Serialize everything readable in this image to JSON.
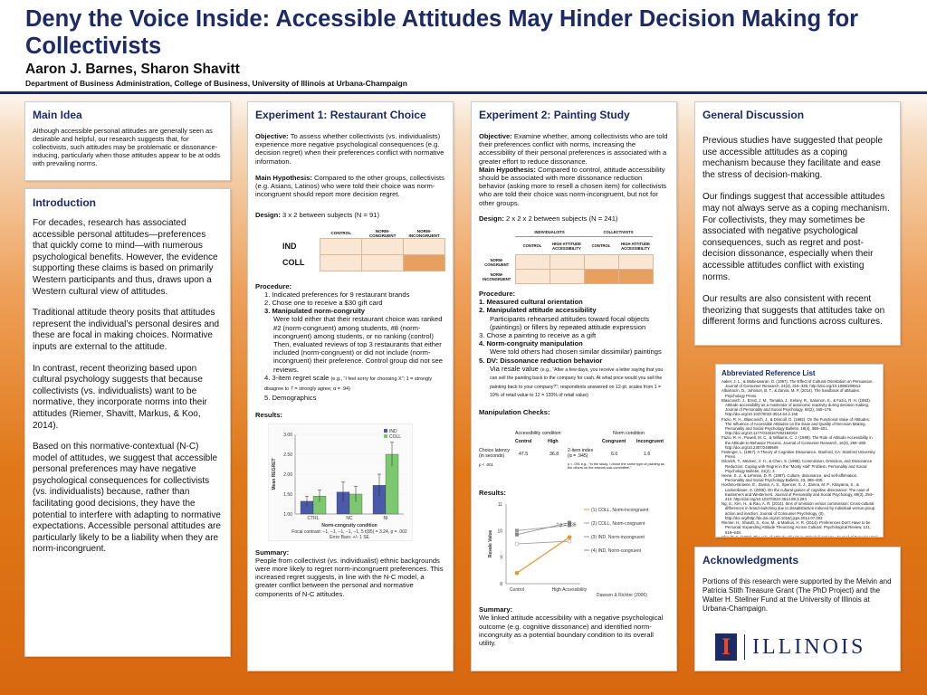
{
  "header": {
    "title": "Deny the Voice Inside: Accessible Attitudes May Hinder Decision Making for Collectivists",
    "authors": "Aaron J. Barnes, Sharon Shavitt",
    "department": "Department of Business Administration, College of Business, University of Illinois at Urbana-Champaign"
  },
  "main_idea": {
    "heading": "Main Idea",
    "text": "Although accessible personal attitudes are generally seen as desirable and helpful, our research suggests that, for collectivists, such attitudes may be problematic or dissonance-inducing, particularly when those attitudes appear to be at odds with prevailing norms."
  },
  "intro": {
    "heading": "Introduction",
    "p1": "For decades, research has associated accessible personal attitudes—preferences that quickly come to mind—with numerous psychological benefits. However, the evidence supporting these claims is based on primarily Western participants and thus, draws upon a Western cultural view of attitudes.",
    "p2": "Traditional attitude theory posits that attitudes represent the individual’s personal desires and these are focal in making choices. Normative inputs are external to the attitude.",
    "p3": "In contrast, recent theorizing based upon cultural psychology suggests that because collectivists (vs. individualists) want to be normative, they incorporate norms into their attitudes (Riemer, Shavitt, Markus, & Koo, 2014).",
    "p4": "Based on this normative-contextual (N-C) model of attitudes, we suggest that accessible personal preferences may have negative psychological consequences for collectivists (vs. individualists) because, rather than facilitating good decisions, they have the potential to interfere with adapting to normative expectations. Accessible personal attitudes are particularly likely to be a liability when they are norm-incongruent."
  },
  "exp1": {
    "heading": "Experiment 1: Restaurant Choice",
    "objective_label": "Objective:",
    "objective": "To assess whether collectivists (vs. individualists) experience more negative psychological consequences (e.g. decision regret) when their preferences conflict with normative information.",
    "hypothesis_label": "Main Hypothesis:",
    "hypothesis": "Compared to the other groups, collectivists (e.g. Asians, Latinos) who were told their choice was norm-incongruent should report more decision regret.",
    "design_label": "Design:",
    "design": "3 x 2 between subjects (N = 91)",
    "table_cols": [
      "CONTROL",
      "NORM-\nCONGRUENT",
      "NORM-\nINCONGRUENT"
    ],
    "table_rows": [
      "IND",
      "COLL"
    ],
    "procedure_label": "Procedure:",
    "procedure": [
      "1. Indicated preferences for 9 restaurant brands",
      "2. Chose one to receive a $30 gift card",
      "3. Manipulated norm-congruity"
    ],
    "procedure_detail": "Were told either that their restaurant choice was ranked #2 (norm-congruent) among students, #8 (norm-incongruent) among students, or no ranking (control)",
    "procedure_detail2": "Then, evaluated reviews of top 3 restaurants that either included (norm-congruent) or did not include (norm-incongruent) their preference. Control group did not see reviews.",
    "procedure_4": "4. 3-item regret scale",
    "procedure_4_note": "(e.g., “I feel sorry for choosing X”; 1 = strongly disagree to 7 = strongly agree; α = .94)",
    "procedure_5": "5. Demographics",
    "results_label": "Results:",
    "summary_label": "Summary:",
    "summary": "People from collectivist (vs. individualist) ethnic backgrounds were more likely to regret norm-incongruent preferences. This increased regret suggests, in line with the N-C model, a greater conflict between the personal and normative components of N-C attitudes."
  },
  "exp2": {
    "heading": "Experiment 2: Painting Study",
    "objective_label": "Objective:",
    "objective": "Examine whether, among collectivists who are told their preferences conflict with norms, increasing the accessibility of their personal preferences is associated with a greater effort to reduce dissonance.",
    "hypothesis_label": "Main Hypothesis:",
    "hypothesis": "Compared to control, attitude accessibility should be associated with more dissonance reduction behavior (asking more to resell a chosen item) for collectivists who are told their choice was norm-incongruent, but not for other groups.",
    "design_label": "Design:",
    "design": "2 x 2 x 2 between subjects (N = 241)",
    "table_groups": [
      "INDIVIDUALISTS",
      "COLLECTIVISTS"
    ],
    "table_cols": [
      "CONTROL",
      "HIGH ATTITUDE\nACCESSIBILITY",
      "CONTROL",
      "HIGH ATTITUDE\nACCESSIBILITY"
    ],
    "table_rows": [
      "NORM-\nCONGRUENT",
      "NORM-\nINCONGRUENT"
    ],
    "procedure_label": "Procedure:",
    "proc1": "1.  Measured cultural orientation",
    "proc2": "2.  Manipulated attitude accessibility",
    "proc2_detail": "Participants rehearsed attitudes toward focal objects (paintings) or fillers by repeated attitude expression",
    "proc3": "3.  Chose a painting to receive as a gift",
    "proc4": "4.  Norm-congruity manipulation",
    "proc4_detail": "Were told others had chosen similar dissimilar) paintings",
    "proc5": "5.  DV: Dissonance reduction behavior",
    "proc5_detail": "Via resale value",
    "proc5_note": "(e.g., “After a few days, you receive a letter saying that you can sell the painting back to the company for cash. At what price would you sell the painting back to your company?”; respondents answered on 12-pt. scales from 1 = 10% of retail value to 12 = 120% of retail value)",
    "manip_label": "Manipulation Checks:",
    "results_label": "Results:",
    "summary_label": "Summary:",
    "summary": "We linked attitude accessibility with a negative psychological outcome (e.g. cognitive dissonance) and identified norm-incongruity as a potential boundary condition to its overall utility.",
    "source": "Dawson & Richter (2006)"
  },
  "manip": {
    "acc_title": "Accessibility condition",
    "acc_cols": [
      "Control",
      "High"
    ],
    "row_label": "Choice latency\n(in seconds)",
    "row_p": "p < .001",
    "acc_vals": [
      "47.5",
      "36.8"
    ],
    "two_item": "2-item index\n(α = .945)",
    "norm_title": "Norm condition",
    "norm_cols": [
      "Congruent",
      "Incongruent"
    ],
    "norm_vals": [
      "6.0",
      "1.6"
    ],
    "norm_note": "p < .001 e.g., “In the study, I chose the same type of painting as the others on the artwork sub-committee.”"
  },
  "chart_data": [
    {
      "type": "bar",
      "title": "",
      "categories": [
        "CTRL",
        "NC",
        "NI"
      ],
      "series": [
        {
          "name": "IND",
          "color": "#4a5aa8",
          "values": [
            1.32,
            1.55,
            1.72
          ]
        },
        {
          "name": "COLL",
          "color": "#7cc870",
          "values": [
            1.45,
            1.5,
            2.5
          ]
        }
      ],
      "errors": {
        "IND": [
          0.12,
          0.25,
          0.28
        ],
        "COLL": [
          0.15,
          0.2,
          0.3
        ]
      },
      "xlabel": "Norm-congruity condition",
      "ylabel": "Mean REGRET",
      "ylim": [
        1.0,
        3.0
      ],
      "yticks": [
        "3.00",
        "2.50",
        "2.00",
        "1.50",
        "1.00"
      ],
      "legend": [
        "IND",
        "COLL"
      ],
      "footnote": "Focal contrast: −1, −1, −1, −1, −1, 5  t(85) = 3.24, p = .002",
      "errorbars": "Error Bars: +/- 1 SE"
    },
    {
      "type": "line",
      "categories": [
        "Control",
        "High Accessibility"
      ],
      "series": [
        {
          "name": "(1) COLL, Norm-incongruent",
          "color": "#e8962c",
          "marker": "circle",
          "values": [
            8.4,
            9.75
          ]
        },
        {
          "name": "(2) COLL, Norm-congruent",
          "color": "#999",
          "marker": "square",
          "values": [
            10.0,
            10.2
          ]
        },
        {
          "name": "(3) IND, Norm-incongruent",
          "color": "#999",
          "marker": "circle-open",
          "values": [
            9.5,
            9.6
          ]
        },
        {
          "name": "(4) IND, Norm-congruent",
          "color": "#888",
          "marker": "square",
          "values": [
            9.85,
            10.3
          ]
        }
      ],
      "ylabel": "Resale Value",
      "ylim": [
        8,
        11
      ],
      "yticks": [
        "11",
        "10",
        "9",
        "8"
      ],
      "annotation": "* p = .036"
    }
  ],
  "discussion": {
    "heading": "General Discussion",
    "p1": "Previous studies have suggested that people use accessible attitudes as a coping mechanism because they facilitate and ease the stress of decision-making.",
    "p2": "Our findings suggest that accessible attitudes may not always serve as a coping mechanism. For collectivists, they may sometimes be associated with negative psychological consequences, such as regret and post-decision dissonance, especially when their accessible attitudes conflict with existing norms.",
    "p3": "Our results are also consistent with recent theorizing that suggests that attitudes take on different forms and functions across cultures."
  },
  "refs": {
    "heading": "Abbreviated Reference List",
    "items": [
      "Aaker, J. L., & Maheswaran, D. (1997). The Effect of Cultural Orientation on Persuasion. Journal of Consumer Research, 24(3), 315–328. http://doi.org/10.1086/209513",
      "Albarracín, D., Johnson, B. T., & Zanna, M. P. (2014). The handbook of attitudes. Psychology Press.",
      "Blascovich, J., Ernst, J. M., Tomaka, J., Kelsey, R., Salomon, K., & Fazio, R. H. (1993). Attitude accessibility as a moderator of autonomic reactivity during decision making. Journal of Personality and Social Psychology, 64(2), 165–176. http://doi.org/10.1037/0022-3514.64.2.165",
      "Fazio, R. H., Blascovich, J., & Driscoll, D. (1992). On the Functional Value of Attitudes: The Influence of Accessible Attitudes on the Ease and Quality of Decision Making. Personality and Social Psychology Bulletin, 18(4), 388–401. http://doi.org/10.1177/0146167292184002",
      "Fazio, R. H., Powell, M. C., & Williams, C. J. (1989). The Role of Attitude Accessibility in the Attitude-to-Behavior Process. Journal of Consumer Research, 16(3), 280–288. http://doi.org/10.2307/2489509",
      "Festinger, L. (1957). A Theory of Cognitive Dissonance. Stanford, CA: Stanford University Press.",
      "Gilovich, T., Medvec, V. H., & Chen, S. (1995). Commission, Omission, and Dissonance Reduction: Coping with Regret in the “Monty Hall” Problem. Personality and Social Psychology Bulletin, 21(2), 3.",
      "Heine, S. J., & Lehman, D. R. (1997). Culture, dissonance, and self-affirmation. Personality and Social Psychology Bulletin, 23, 389–400.",
      "Hoshino-Browne, E., Zanna, A. S., Spencer, S. J., Zanna, M. P., Kitayama, S., & Lackenbauer, S. (2005). On the cultural guises of cognitive dissonance: The case of Easterners and Westerners. Journal of Personality and Social Psychology, 89(3), 294–310. http://doi.org/10.1037/0022-3514.89.3.294",
      "Ng, S., Kim, H., & Rao, A. R. (2014). Sins of omission versus commission: Cross-cultural differences in brand-switching due to dissatisfaction induced by individual versus group action and inaction. Journal of Consumer Psychology, (0). http://doi.org/http://dx.doi.org/10.1016/j.jcps.2014.07.003",
      "Riemer, H., Shavitt, S., Koo, M., & Markus, H. R. (2014). Preferences Don’t Have to be Personal: Expanding Attitude Theorizing Across Cultural. Psychological Review, 121, 619–648.",
      "Shavitt, S. (1990). The role of attitude objects in attitude functions. Journal of Experimental Social Psychology, 26(2), 124–148. http://doi.org/10.1016/0022-1031(90)90072-T",
      "Triandis, H. C. (1989). The self and social behavior in differing cultural contexts. Psychological Review, 96(3), 506.",
      "Triandis, H. C., & Gelfand, M. J. (1998). Converging measurement of horizontal and vertical individualism and collectivism. Journal of Personality and Social Psychology, 74(1), 118."
    ]
  },
  "ack": {
    "heading": "Acknowledgments",
    "text": "Portions of this research were supported by the Melvin and Patricia Stith Treasure Grant (The PhD Project) and the Walter H. Stellner Fund at the University of Illinois at Urbana-Champaign."
  },
  "logo": {
    "letter": "I",
    "word": "ILLINOIS"
  },
  "colors": {
    "navy": "#1c2a66",
    "orange": "#e08a3c",
    "peach": "#fbe6d4",
    "illini_orange": "#e84a27"
  }
}
